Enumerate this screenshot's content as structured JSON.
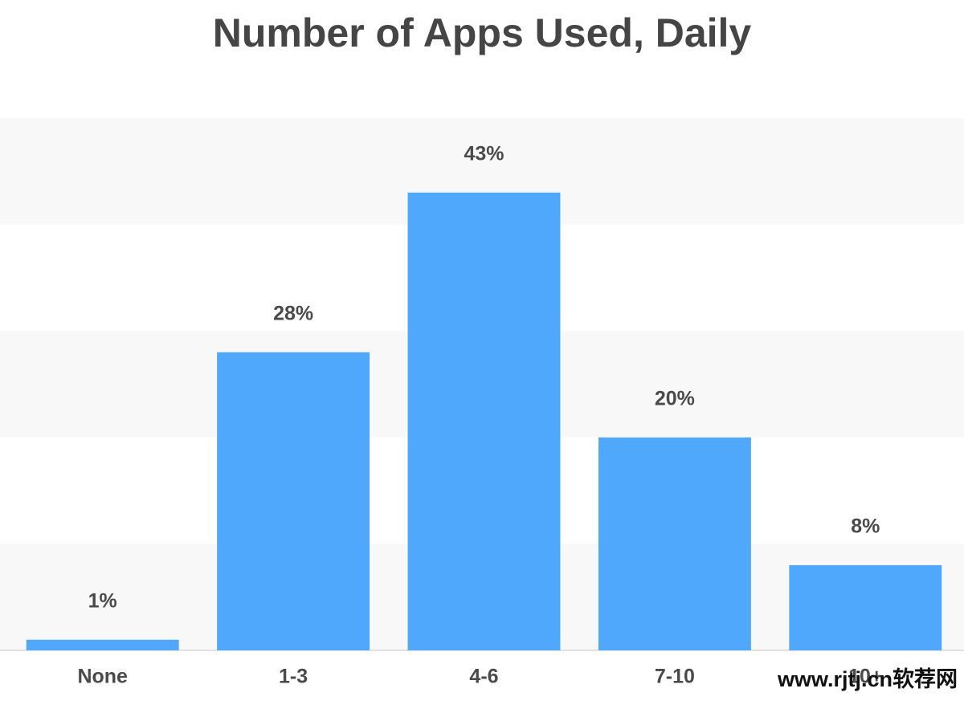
{
  "chart_data": {
    "type": "bar",
    "title": "Number of Apps Used, Daily",
    "categories": [
      "None",
      "1-3",
      "4-6",
      "7-10",
      "10+"
    ],
    "values": [
      1,
      28,
      43,
      20,
      8
    ],
    "value_labels": [
      "1%",
      "28%",
      "43%",
      "20%",
      "8%"
    ],
    "color": "#4fa8fc",
    "ylim": [
      0,
      50
    ],
    "watermark": "www.rjtj.cn软荐网"
  }
}
